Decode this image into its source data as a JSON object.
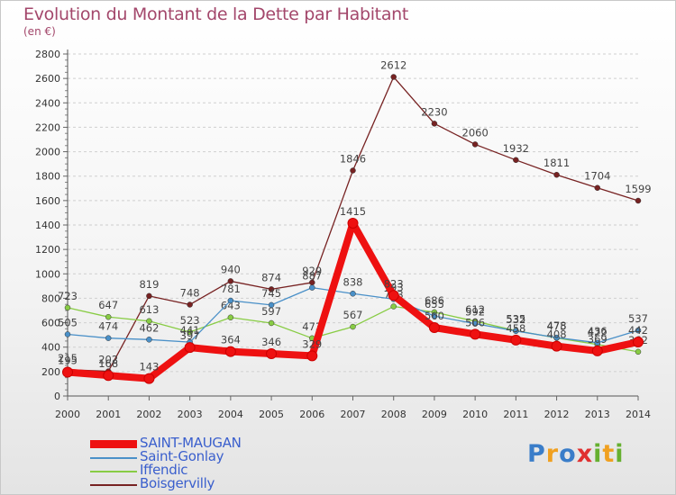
{
  "chart_data": {
    "type": "line",
    "title": "Evolution du Montant de la Dette par Habitant",
    "subtitle": "(en €)",
    "xlabel": "",
    "ylabel": "",
    "ylim": [
      0,
      2800
    ],
    "ytick_step": 200,
    "grid": "horizontal-dashed",
    "categories": [
      "2000",
      "2001",
      "2002",
      "2003",
      "2004",
      "2005",
      "2006",
      "2007",
      "2008",
      "2009",
      "2010",
      "2011",
      "2012",
      "2013",
      "2014"
    ],
    "series": [
      {
        "name": "SAINT-MAUGAN",
        "color": "#ee1111",
        "values": [
          195,
          168,
          143,
          397,
          364,
          346,
          329,
          1415,
          823,
          560,
          506,
          458,
          408,
          369,
          442
        ]
      },
      {
        "name": "Saint-Gonlay",
        "color": "#4a90c8",
        "values": [
          505,
          474,
          462,
          441,
          781,
          745,
          887,
          838,
          793,
          655,
          592,
          532,
          478,
          436,
          537
        ]
      },
      {
        "name": "Iffendic",
        "color": "#88cc44",
        "values": [
          723,
          647,
          613,
          523,
          643,
          597,
          473,
          567,
          733,
          686,
          612,
          535,
          475,
          422,
          362
        ]
      },
      {
        "name": "Boisgervilly",
        "color": "#772222",
        "values": [
          215,
          202,
          819,
          748,
          940,
          874,
          929,
          1846,
          2612,
          2230,
          2060,
          1932,
          1811,
          1704,
          1599
        ]
      }
    ]
  },
  "logo": {
    "letters": [
      "P",
      "r",
      "o",
      "x",
      "i",
      "t",
      "i"
    ],
    "colors": [
      "#3a7dc9",
      "#f0a020",
      "#3a7dc9",
      "#e03030",
      "#66b030",
      "#f0a020",
      "#66b030"
    ]
  }
}
